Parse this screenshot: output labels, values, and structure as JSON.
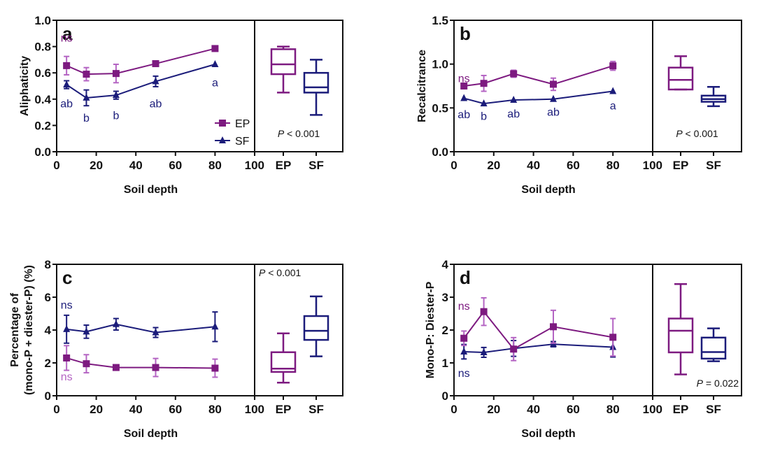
{
  "colors": {
    "EP": "#7d1a80",
    "EP_err": "#b464c3",
    "SF": "#1b1c7a",
    "axis": "#111111"
  },
  "chart_data": [
    {
      "id": "a",
      "type": "line",
      "panel_letter": "a",
      "xlabel": "Soil depth",
      "ylabel": "Aliphaticity",
      "xlim": [
        0,
        100
      ],
      "ylim": [
        0,
        1.0
      ],
      "xticks": [
        "0",
        "20",
        "40",
        "60",
        "80",
        "100"
      ],
      "yticks": [
        "0.0",
        "0.2",
        "0.4",
        "0.6",
        "0.8",
        "1.0"
      ],
      "x": [
        5,
        15,
        30,
        50,
        80
      ],
      "series": [
        {
          "name": "EP",
          "values": [
            0.655,
            0.59,
            0.595,
            0.67,
            0.785
          ],
          "errors": [
            0.07,
            0.05,
            0.07,
            0,
            0
          ]
        },
        {
          "name": "SF",
          "values": [
            0.51,
            0.41,
            0.43,
            0.535,
            0.665
          ],
          "errors": [
            0.03,
            0.06,
            0.03,
            0.04,
            0
          ]
        }
      ],
      "annotations": [
        {
          "text": "ns",
          "series": "EP",
          "x": 5,
          "y": 0.87
        },
        {
          "text": "ab",
          "series": "SF",
          "x": 5,
          "y": 0.37
        },
        {
          "text": "b",
          "series": "SF",
          "x": 15,
          "y": 0.26
        },
        {
          "text": "b",
          "series": "SF",
          "x": 30,
          "y": 0.28
        },
        {
          "text": "ab",
          "series": "SF",
          "x": 50,
          "y": 0.37
        },
        {
          "text": "a",
          "series": "SF",
          "x": 80,
          "y": 0.53
        }
      ],
      "legend": {
        "placement": "bottom-right",
        "entries": [
          "EP",
          "SF"
        ]
      },
      "box": {
        "categories": [
          "EP",
          "SF"
        ],
        "stats": [
          {
            "name": "EP",
            "min": 0.45,
            "q1": 0.59,
            "median": 0.665,
            "q3": 0.78,
            "max": 0.8
          },
          {
            "name": "SF",
            "min": 0.28,
            "q1": 0.45,
            "median": 0.49,
            "q3": 0.6,
            "max": 0.7
          }
        ],
        "p_text_label": "P",
        "p_text_value": " < 0.001",
        "p_placement": "bottom"
      }
    },
    {
      "id": "b",
      "type": "line",
      "panel_letter": "b",
      "xlabel": "Soil depth",
      "ylabel": "Recalcitrance",
      "xlim": [
        0,
        100
      ],
      "ylim": [
        0,
        1.5
      ],
      "xticks": [
        "0",
        "20",
        "40",
        "60",
        "80",
        "100"
      ],
      "yticks": [
        "0.0",
        "0.5",
        "1.0",
        "1.5"
      ],
      "x": [
        5,
        15,
        30,
        50,
        80
      ],
      "series": [
        {
          "name": "EP",
          "values": [
            0.75,
            0.78,
            0.89,
            0.77,
            0.98
          ],
          "errors": [
            0,
            0.09,
            0.04,
            0.07,
            0.05
          ]
        },
        {
          "name": "SF",
          "values": [
            0.61,
            0.55,
            0.59,
            0.6,
            0.69
          ],
          "errors": [
            0,
            0,
            0,
            0,
            0
          ]
        }
      ],
      "annotations": [
        {
          "text": "ns",
          "series": "EP",
          "x": 5,
          "y": 0.84
        },
        {
          "text": "ab",
          "series": "SF",
          "x": 5,
          "y": 0.43
        },
        {
          "text": "b",
          "series": "SF",
          "x": 15,
          "y": 0.41
        },
        {
          "text": "ab",
          "series": "SF",
          "x": 30,
          "y": 0.44
        },
        {
          "text": "ab",
          "series": "SF",
          "x": 50,
          "y": 0.46
        },
        {
          "text": "a",
          "series": "SF",
          "x": 80,
          "y": 0.53
        }
      ],
      "box": {
        "categories": [
          "EP",
          "SF"
        ],
        "stats": [
          {
            "name": "EP",
            "min": 0.71,
            "q1": 0.71,
            "median": 0.82,
            "q3": 0.96,
            "max": 1.09
          },
          {
            "name": "SF",
            "min": 0.52,
            "q1": 0.57,
            "median": 0.6,
            "q3": 0.64,
            "max": 0.74
          }
        ],
        "p_text_label": "P",
        "p_text_value": " < 0.001",
        "p_placement": "bottom"
      }
    },
    {
      "id": "c",
      "type": "line",
      "panel_letter": "c",
      "xlabel": "Soil depth",
      "ylabel_line1": "Percentage of",
      "ylabel_line2": "(mono-P + diester-P) (%)",
      "xlim": [
        0,
        100
      ],
      "ylim": [
        0,
        8
      ],
      "xticks": [
        "0",
        "20",
        "40",
        "60",
        "80",
        "100"
      ],
      "yticks": [
        "0",
        "2",
        "4",
        "6",
        "8"
      ],
      "x": [
        5,
        15,
        30,
        50,
        80
      ],
      "series": [
        {
          "name": "EP",
          "values": [
            2.3,
            1.95,
            1.72,
            1.72,
            1.68
          ],
          "errors": [
            0.75,
            0.55,
            0,
            0.55,
            0.55
          ]
        },
        {
          "name": "SF",
          "values": [
            4.05,
            3.9,
            4.35,
            3.85,
            4.2
          ],
          "errors": [
            0.85,
            0.4,
            0.35,
            0.3,
            0.9
          ]
        }
      ],
      "annotations": [
        {
          "text": "ns",
          "series": "SF",
          "x": 5,
          "y": 5.55
        },
        {
          "text": "ns",
          "series": "EP",
          "x": 5,
          "y": 1.2
        }
      ],
      "box": {
        "categories": [
          "EP",
          "SF"
        ],
        "stats": [
          {
            "name": "EP",
            "min": 0.8,
            "q1": 1.45,
            "median": 1.65,
            "q3": 2.65,
            "max": 3.8
          },
          {
            "name": "SF",
            "min": 2.4,
            "q1": 3.4,
            "median": 3.95,
            "q3": 4.85,
            "max": 6.05
          }
        ],
        "p_text_label": "P",
        "p_text_value": " < 0.001",
        "p_placement": "top"
      }
    },
    {
      "id": "d",
      "type": "line",
      "panel_letter": "d",
      "xlabel": "Soil depth",
      "ylabel": "Mono-P: Diester-P",
      "xlim": [
        0,
        100
      ],
      "ylim": [
        0,
        4
      ],
      "xticks": [
        "0",
        "20",
        "40",
        "60",
        "80",
        "100"
      ],
      "yticks": [
        "0",
        "1",
        "2",
        "3",
        "4"
      ],
      "x": [
        5,
        15,
        30,
        50,
        80
      ],
      "series": [
        {
          "name": "EP",
          "values": [
            1.75,
            2.56,
            1.42,
            2.1,
            1.78
          ],
          "errors": [
            0.22,
            0.42,
            0.35,
            0.5,
            0.57
          ]
        },
        {
          "name": "SF",
          "values": [
            1.34,
            1.32,
            1.44,
            1.57,
            1.48
          ],
          "errors": [
            0.22,
            0.15,
            0.24,
            0.08,
            0.3
          ]
        }
      ],
      "annotations": [
        {
          "text": "ns",
          "series": "EP",
          "x": 5,
          "y": 2.75
        },
        {
          "text": "ns",
          "series": "SF",
          "x": 5,
          "y": 0.7
        }
      ],
      "box": {
        "categories": [
          "EP",
          "SF"
        ],
        "stats": [
          {
            "name": "EP",
            "min": 0.65,
            "q1": 1.32,
            "median": 1.98,
            "q3": 2.35,
            "max": 3.4
          },
          {
            "name": "SF",
            "min": 1.05,
            "q1": 1.13,
            "median": 1.33,
            "q3": 1.77,
            "max": 2.05
          }
        ],
        "p_text_label": "P",
        "p_text_value": " = 0.022",
        "p_placement": "bottom-right"
      }
    }
  ]
}
